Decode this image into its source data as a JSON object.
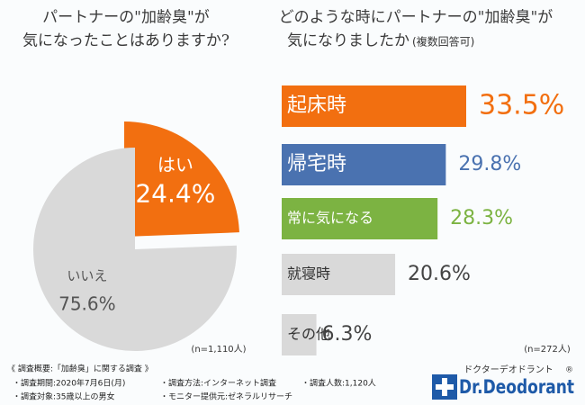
{
  "chart_data": [
    {
      "type": "pie",
      "title_lines": [
        "パートナーの\"加齢臭\"が",
        "気になったことはありますか?"
      ],
      "categories": [
        "はい",
        "いいえ"
      ],
      "values": [
        24.4,
        75.6
      ],
      "value_labels": [
        "24.4%",
        "75.6%"
      ],
      "colors": [
        "#f26f10",
        "#d9d9d9"
      ],
      "note": "(n=1,110人)"
    },
    {
      "type": "bar",
      "title_lines": [
        "どのような時にパートナーの\"加齢臭\"が",
        "気になりましたか"
      ],
      "subtitle": "(複数回答可)",
      "categories": [
        "起床時",
        "帰宅時",
        "常に気になる",
        "就寝時",
        "その他"
      ],
      "values": [
        33.5,
        29.8,
        28.3,
        20.6,
        6.3
      ],
      "value_labels": [
        "33.5%",
        "29.8%",
        "28.3%",
        "20.6%",
        "6.3%"
      ],
      "colors": [
        "#f26f10",
        "#4a72b0",
        "#7cb342",
        "#d9d9d9",
        "#d9d9d9"
      ],
      "note": "(n=272人)"
    }
  ],
  "footer": {
    "heading": "《 調査概要:「加齢臭」に関する調査 》",
    "items": [
      "・調査期間:2020年7月6日(月)",
      "・調査対象:35歳以上の男女",
      "・調査方法:インターネット調査",
      "・モニター提供元:ゼネラルリサーチ",
      "・調査人数:1,120人"
    ]
  },
  "logo": {
    "kana": "ドクターデオドラント",
    "name": "Dr.Deodorant",
    "mark": "®"
  }
}
